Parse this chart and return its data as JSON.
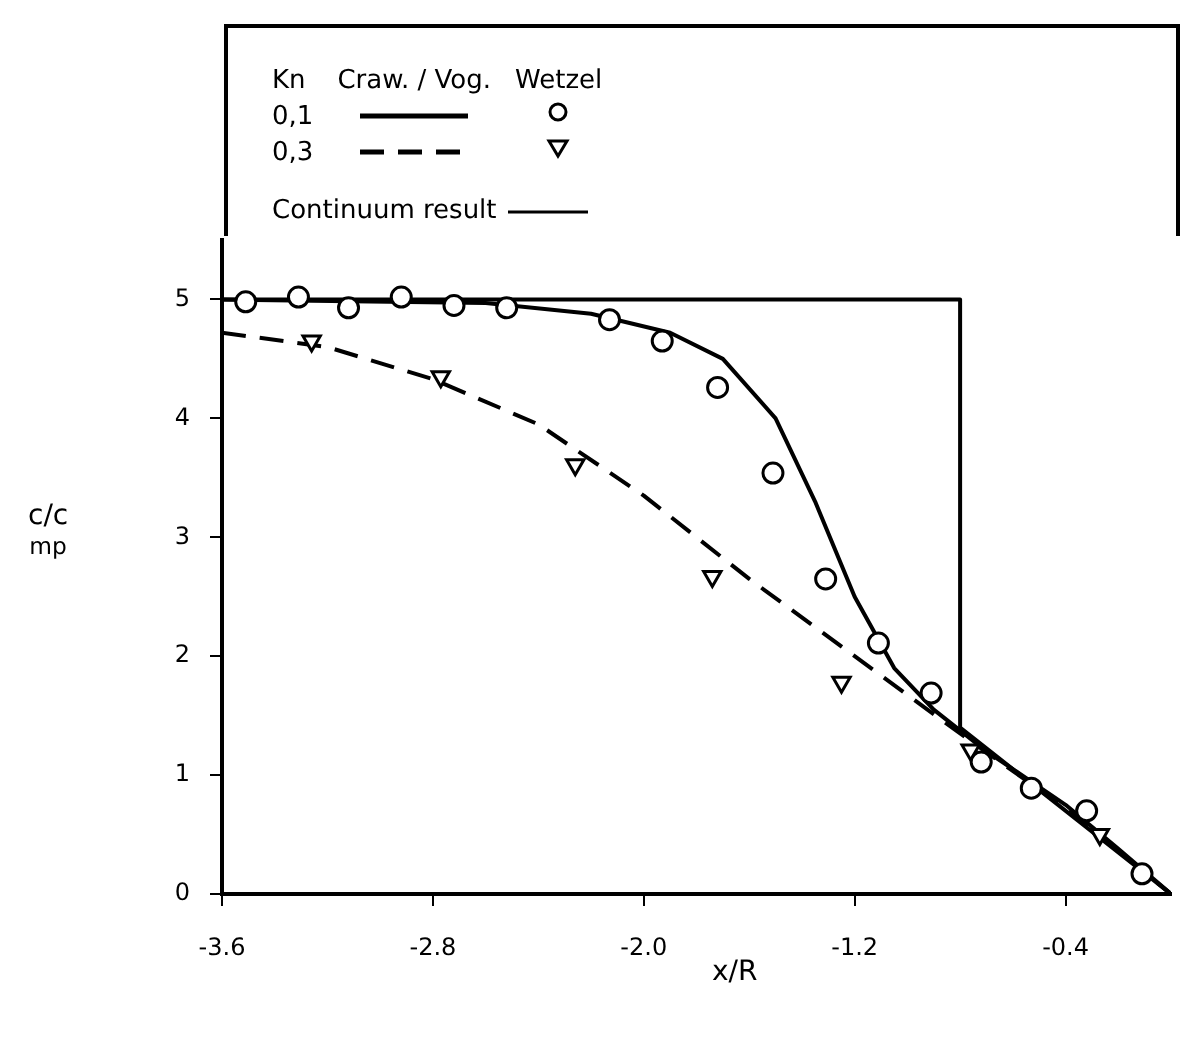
{
  "chart_data": {
    "type": "line",
    "xlabel": "x/R",
    "ylabel": "c/c$_{mp}$",
    "legend_title": "Kn",
    "annotations": [
      "Craw. / Vog.",
      "Wetzel"
    ],
    "legend": "top",
    "grid": false,
    "xlim": [
      -3.6,
      0
    ],
    "xticks": [
      -3.6,
      -2.8,
      {
        "value": -2,
        "label": "-2.0"
      },
      -1.2,
      -0.4
    ],
    "ylim": [
      0,
      5.5
    ],
    "yticks": [
      0,
      1,
      2,
      3,
      4,
      5
    ],
    "series": [
      {
        "name": "0,1",
        "color": "#000000",
        "line_style": "solid",
        "marker": "none",
        "x": [
          -3.6,
          -2.6,
          -2.2,
          -1.9,
          -1.7,
          -1.5,
          -1.35,
          -1.2,
          -1.05,
          -0.9,
          -0.7,
          -0.4,
          -0.2,
          0
        ],
        "values": [
          5.0,
          4.97,
          4.88,
          4.72,
          4.5,
          4.0,
          3.3,
          2.5,
          1.9,
          1.55,
          1.2,
          0.75,
          0.38,
          0
        ]
      },
      {
        "type": "scatter",
        "color": "#000000",
        "marker": "circle",
        "x": [
          -3.51,
          -3.31,
          -3.12,
          -2.92,
          -2.72,
          -2.52,
          -2.13,
          -1.93,
          -1.72,
          -1.51,
          -1.31,
          -1.11,
          -0.91,
          -0.72,
          -0.53,
          -0.32,
          -0.11
        ],
        "values": [
          4.98,
          5.02,
          4.93,
          5.02,
          4.95,
          4.93,
          4.83,
          4.65,
          4.26,
          3.54,
          2.65,
          2.11,
          1.69,
          1.11,
          0.89,
          0.7,
          0.17
        ]
      },
      {
        "name": "0,3",
        "color": "#000000",
        "line_style": "dashed",
        "marker": "none",
        "x": [
          -3.6,
          -3.2,
          -2.8,
          -2.4,
          -2.0,
          -1.6,
          -1.2,
          -0.8,
          -0.4,
          0
        ],
        "values": [
          4.72,
          4.6,
          4.33,
          3.95,
          3.35,
          2.65,
          2.0,
          1.35,
          0.72,
          0
        ]
      },
      {
        "type": "scatter",
        "color": "#000000",
        "marker": "triangle",
        "x": [
          -3.26,
          -2.77,
          -2.26,
          -1.74,
          -1.25,
          -0.76,
          -0.27
        ],
        "values": [
          4.65,
          4.35,
          3.61,
          2.67,
          1.78,
          1.21,
          0.5
        ]
      },
      {
        "name": "Continuum result",
        "color": "#000000",
        "line_style": "solid",
        "marker": "none",
        "x": [
          -3.6,
          -0.8,
          -0.8,
          0
        ],
        "values": [
          5,
          5,
          1.4,
          0
        ]
      }
    ]
  }
}
